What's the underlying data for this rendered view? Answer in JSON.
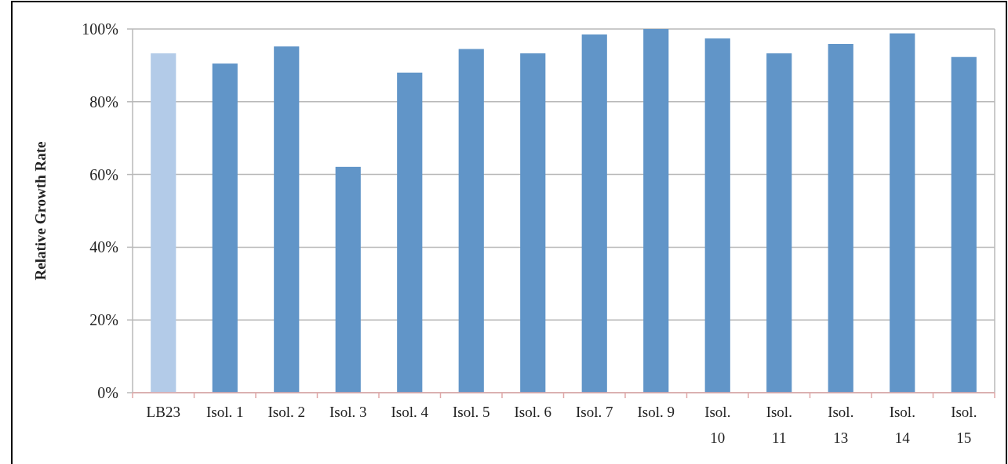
{
  "chart_data": {
    "type": "bar",
    "ylabel": "Relative Growth Rate",
    "categories": [
      "LB23",
      "Isol. 1",
      "Isol. 2",
      "Isol. 3",
      "Isol. 4",
      "Isol. 5",
      "Isol. 6",
      "Isol. 7",
      "Isol. 9",
      "Isol. 10",
      "Isol. 11",
      "Isol. 13",
      "Isol. 14",
      "Isol. 15"
    ],
    "values": [
      93.3,
      90.5,
      95.2,
      62.1,
      88.0,
      94.5,
      93.3,
      98.5,
      100,
      97.4,
      93.3,
      95.9,
      98.8,
      92.3
    ],
    "colors": [
      "#b3cbe8",
      "#6195c8",
      "#6195c8",
      "#6195c8",
      "#6195c8",
      "#6195c8",
      "#6195c8",
      "#6195c8",
      "#6195c8",
      "#6195c8",
      "#6195c8",
      "#6195c8",
      "#6195c8",
      "#6195c8"
    ],
    "ylim": [
      0,
      100
    ],
    "yticks": [
      {
        "value": 0,
        "label": "0%"
      },
      {
        "value": 20,
        "label": "20%"
      },
      {
        "value": 40,
        "label": "40%"
      },
      {
        "value": 60,
        "label": "60%"
      },
      {
        "value": 80,
        "label": "80%"
      },
      {
        "value": 100,
        "label": "100%"
      }
    ],
    "grid": "y"
  }
}
